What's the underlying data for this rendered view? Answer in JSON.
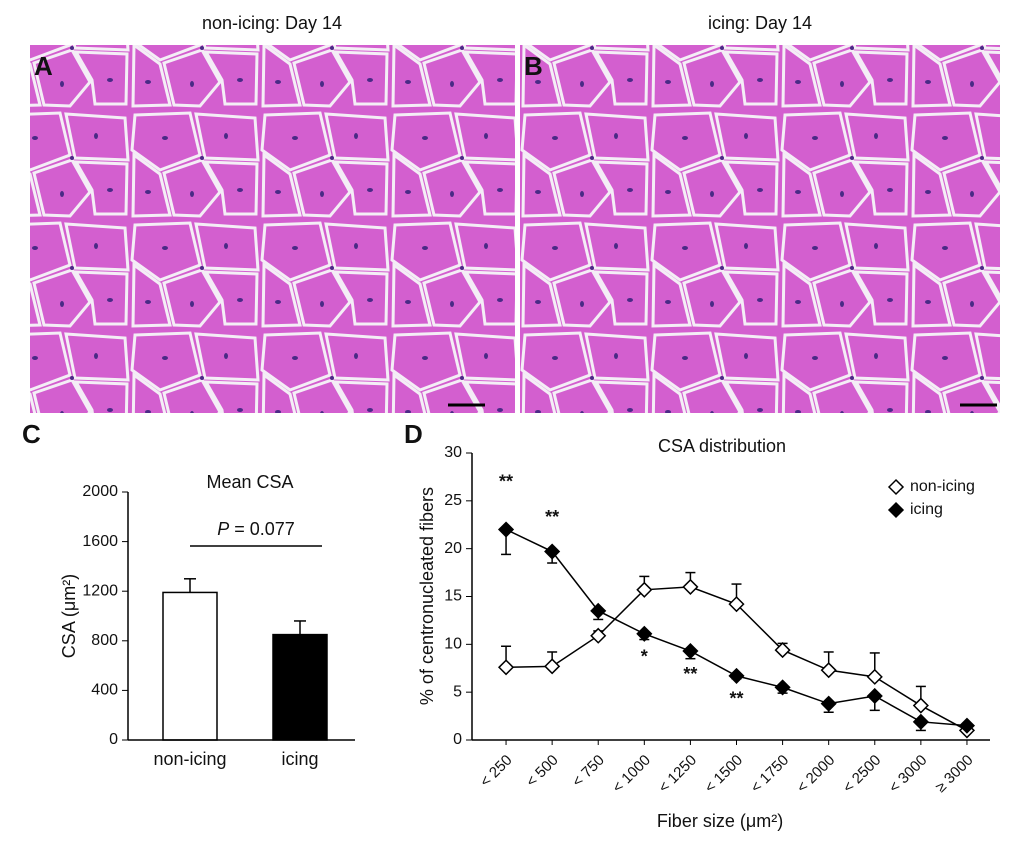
{
  "figure": {
    "images": [
      {
        "panel": "A",
        "title": "non-icing: Day 14"
      },
      {
        "panel": "B",
        "title": "icing: Day 14"
      }
    ]
  },
  "chart_data": [
    {
      "type": "bar",
      "panel": "C",
      "title": "Mean CSA",
      "ylabel": "CSA (μm²)",
      "categories": [
        "non-icing",
        "icing"
      ],
      "values": [
        1190,
        850
      ],
      "errors": [
        110,
        110
      ],
      "colors": [
        "#ffffff",
        "#000000"
      ],
      "ylim": [
        0,
        2000
      ],
      "yticks": [
        0,
        400,
        800,
        1200,
        1600,
        2000
      ],
      "annotation_symbol": "P",
      "annotation_value": "= 0.077"
    },
    {
      "type": "line",
      "panel": "D",
      "title": "CSA distribution",
      "ylabel": "% of centronucleated fibers",
      "xlabel": "Fiber size (μm²)",
      "categories": [
        "< 250",
        "< 500",
        "< 750",
        "< 1000",
        "< 1250",
        "< 1500",
        "< 1750",
        "< 2000",
        "< 2500",
        "< 3000",
        "≥ 3000"
      ],
      "series": [
        {
          "name": "non-icing",
          "color": "#ffffff",
          "error_direction": "up",
          "values": [
            7.6,
            7.7,
            10.9,
            15.7,
            16.0,
            14.2,
            9.4,
            7.3,
            6.6,
            3.6,
            1.0
          ],
          "errors": [
            2.2,
            1.5,
            0.5,
            1.4,
            1.5,
            2.1,
            0.7,
            1.9,
            2.5,
            2.0,
            0.3
          ]
        },
        {
          "name": "icing",
          "color": "#000000",
          "error_direction": "down",
          "values": [
            22.0,
            19.7,
            13.5,
            11.1,
            9.3,
            6.7,
            5.5,
            3.8,
            4.6,
            1.9,
            1.5
          ],
          "errors": [
            2.6,
            1.2,
            0.9,
            0.6,
            0.8,
            0.3,
            0.6,
            0.9,
            1.5,
            0.9,
            0.2
          ],
          "annotations": [
            "**",
            "**",
            null,
            "*",
            "**",
            "**",
            null,
            null,
            null,
            null,
            null
          ]
        }
      ],
      "ylim": [
        0,
        30
      ],
      "yticks": [
        0,
        5,
        10,
        15,
        20,
        25,
        30
      ],
      "legend": "upper right"
    }
  ]
}
